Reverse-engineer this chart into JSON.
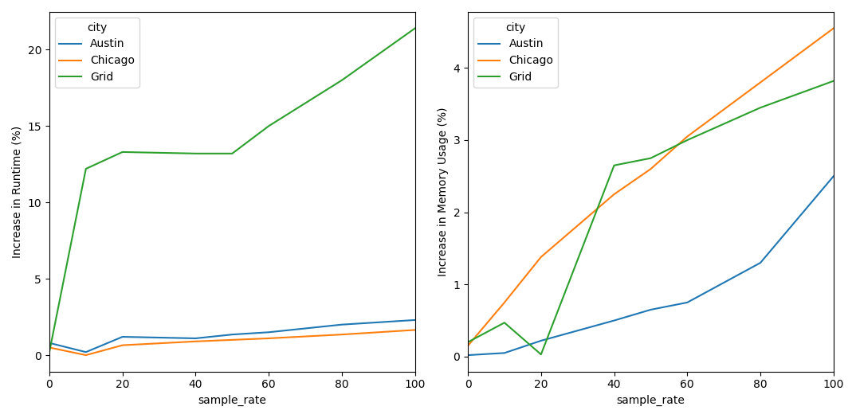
{
  "x": [
    0,
    10,
    20,
    40,
    50,
    60,
    80,
    100
  ],
  "runtime": {
    "Austin": [
      0.8,
      0.2,
      1.2,
      1.1,
      1.35,
      1.5,
      2.0,
      2.3
    ],
    "Chicago": [
      0.5,
      0.0,
      0.65,
      0.9,
      1.0,
      1.1,
      1.35,
      1.65
    ],
    "Grid": [
      0.2,
      12.2,
      13.3,
      13.2,
      13.2,
      15.0,
      18.0,
      21.4
    ]
  },
  "memory": {
    "Austin": [
      0.02,
      0.05,
      0.22,
      0.5,
      0.65,
      0.75,
      1.3,
      2.5
    ],
    "Chicago": [
      0.15,
      0.75,
      1.38,
      2.25,
      2.6,
      3.05,
      3.8,
      4.55
    ],
    "Grid": [
      0.2,
      0.47,
      0.03,
      2.65,
      2.75,
      3.0,
      3.45,
      3.82
    ]
  },
  "colors": {
    "Austin": "#1f77b4",
    "Chicago": "#ff7f0e",
    "Grid": "#2ca02c"
  },
  "ylabel_left": "Increase in Runtime (%)",
  "ylabel_right": "Increase in Memory Usage (%)",
  "xlabel": "sample_rate",
  "legend_title": "city"
}
